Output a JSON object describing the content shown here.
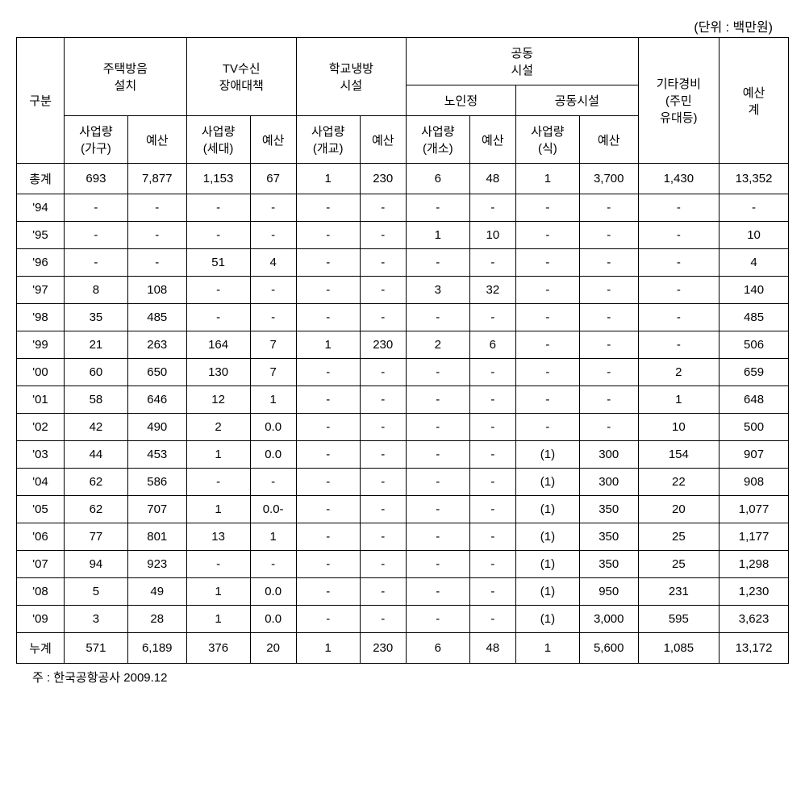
{
  "unit_label": "(단위 : 백만원)",
  "headers": {
    "gubun": "구분",
    "housing": "주택방음\n설치",
    "tv": "TV수신\n장애대책",
    "school": "학교냉방\n시설",
    "community": "공동\n시설",
    "community_senior": "노인정",
    "community_facility": "공동시설",
    "other": "기타경비\n(주민\n유대등)",
    "total": "예산\n계",
    "vol_household": "사업량\n(가구)",
    "budget": "예산",
    "vol_sedae": "사업량\n(세대)",
    "vol_gaegyo": "사업량\n(개교)",
    "vol_gaeso": "사업량\n(개소)",
    "vol_sik": "사업량\n(식)"
  },
  "rows": [
    {
      "label": "총계",
      "c": [
        "693",
        "7,877",
        "1,153",
        "67",
        "1",
        "230",
        "6",
        "48",
        "1",
        "3,700",
        "1,430",
        "13,352"
      ]
    },
    {
      "label": "'94",
      "c": [
        "-",
        "-",
        "-",
        "-",
        "-",
        "-",
        "-",
        "-",
        "-",
        "-",
        "-",
        "-"
      ]
    },
    {
      "label": "'95",
      "c": [
        "-",
        "-",
        "-",
        "-",
        "-",
        "-",
        "1",
        "10",
        "-",
        "-",
        "-",
        "10"
      ]
    },
    {
      "label": "'96",
      "c": [
        "-",
        "-",
        "51",
        "4",
        "-",
        "-",
        "-",
        "-",
        "-",
        "-",
        "-",
        "4"
      ]
    },
    {
      "label": "'97",
      "c": [
        "8",
        "108",
        "-",
        "-",
        "-",
        "-",
        "3",
        "32",
        "-",
        "-",
        "-",
        "140"
      ]
    },
    {
      "label": "'98",
      "c": [
        "35",
        "485",
        "-",
        "-",
        "-",
        "-",
        "-",
        "-",
        "-",
        "-",
        "-",
        "485"
      ]
    },
    {
      "label": "'99",
      "c": [
        "21",
        "263",
        "164",
        "7",
        "1",
        "230",
        "2",
        "6",
        "-",
        "-",
        "-",
        "506"
      ]
    },
    {
      "label": "'00",
      "c": [
        "60",
        "650",
        "130",
        "7",
        "-",
        "-",
        "-",
        "-",
        "-",
        "-",
        "2",
        "659"
      ]
    },
    {
      "label": "'01",
      "c": [
        "58",
        "646",
        "12",
        "1",
        "-",
        "-",
        "-",
        "-",
        "-",
        "-",
        "1",
        "648"
      ]
    },
    {
      "label": "'02",
      "c": [
        "42",
        "490",
        "2",
        "0.0",
        "-",
        "-",
        "-",
        "-",
        "-",
        "-",
        "10",
        "500"
      ]
    },
    {
      "label": "'03",
      "c": [
        "44",
        "453",
        "1",
        "0.0",
        "-",
        "-",
        "-",
        "-",
        "(1)",
        "300",
        "154",
        "907"
      ]
    },
    {
      "label": "'04",
      "c": [
        "62",
        "586",
        "-",
        "-",
        "-",
        "-",
        "-",
        "-",
        "(1)",
        "300",
        "22",
        "908"
      ]
    },
    {
      "label": "'05",
      "c": [
        "62",
        "707",
        "1",
        "0.0-",
        "-",
        "-",
        "-",
        "-",
        "(1)",
        "350",
        "20",
        "1,077"
      ]
    },
    {
      "label": "'06",
      "c": [
        "77",
        "801",
        "13",
        "1",
        "-",
        "-",
        "-",
        "-",
        "(1)",
        "350",
        "25",
        "1,177"
      ]
    },
    {
      "label": "'07",
      "c": [
        "94",
        "923",
        "-",
        "-",
        "-",
        "-",
        "-",
        "-",
        "(1)",
        "350",
        "25",
        "1,298"
      ]
    },
    {
      "label": "'08",
      "c": [
        "5",
        "49",
        "1",
        "0.0",
        "-",
        "-",
        "-",
        "-",
        "(1)",
        "950",
        "231",
        "1,230"
      ]
    },
    {
      "label": "'09",
      "c": [
        "3",
        "28",
        "1",
        "0.0",
        "-",
        "-",
        "-",
        "-",
        "(1)",
        "3,000",
        "595",
        "3,623"
      ]
    },
    {
      "label": "누계",
      "c": [
        "571",
        "6,189",
        "376",
        "20",
        "1",
        "230",
        "6",
        "48",
        "1",
        "5,600",
        "1,085",
        "13,172"
      ]
    }
  ],
  "footnote": "주 : 한국공항공사 2009.12"
}
